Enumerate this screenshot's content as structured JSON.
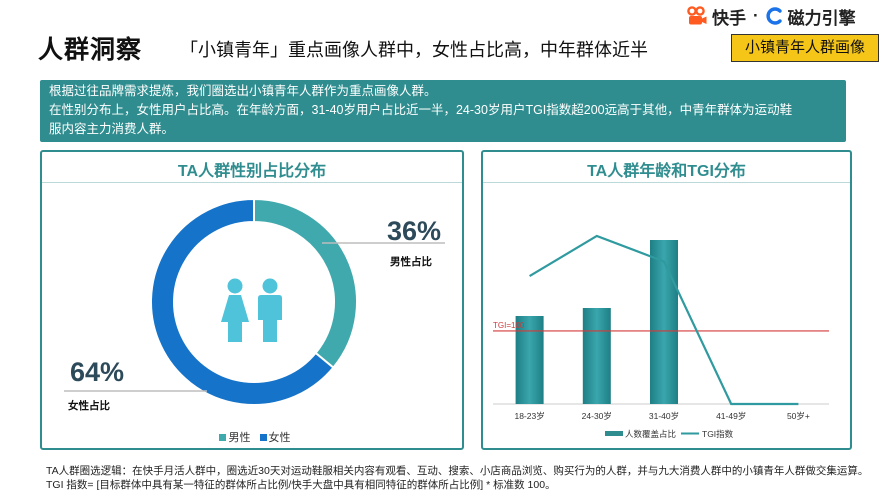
{
  "header": {
    "page_title": "人群洞察",
    "headline": "「小镇青年」重点画像人群中，女性占比高，中年群体近半",
    "tag": "小镇青年人群画像",
    "logo_kuaishou": "快手",
    "logo_separator": "·",
    "logo_cili": "磁力引擎"
  },
  "summary": [
    "根据过往品牌需求提炼，我们圈选出小镇青年人群作为重点画像人群。",
    "在性别分布上，女性用户占比高。在年龄方面，31-40岁用户占比近一半，24-30岁用户TGI指数超200远高于其他，中青年群体为运动鞋",
    "服内容主力消费人群。"
  ],
  "colors": {
    "teal": "#2f8d8f",
    "male": "#40a9ad",
    "female": "#1573c9",
    "badge": "#f5c518",
    "tgi_line": "#d33a3a"
  },
  "chart_data": [
    {
      "type": "pie",
      "title": "TA人群性别占比分布",
      "donut": true,
      "slices": [
        {
          "name": "男性",
          "value": 36,
          "label": "36%",
          "caption": "男性占比"
        },
        {
          "name": "女性",
          "value": 64,
          "label": "64%",
          "caption": "女性占比"
        }
      ],
      "legend": [
        "男性",
        "女性"
      ],
      "legend_position": "bottom"
    },
    {
      "type": "bar",
      "title": "TA人群年龄和TGI分布",
      "categories": [
        "18-23岁",
        "24-30岁",
        "31-40岁",
        "41-49岁",
        "50岁+"
      ],
      "series": [
        {
          "name": "人数覆盖占比",
          "type": "bar",
          "values": [
            22,
            24,
            41,
            0,
            0
          ]
        },
        {
          "name": "TGI指数",
          "type": "line",
          "values": [
            175,
            230,
            195,
            0,
            0
          ]
        }
      ],
      "bar_ylim": [
        0,
        50
      ],
      "tgi_ylim": [
        0,
        260
      ],
      "reference_line": {
        "label": "TGI=100",
        "value": 100
      },
      "legend_position": "bottom"
    }
  ],
  "footnote": [
    "TA人群圈选逻辑：在快手月活人群中，圈选近30天对运动鞋服相关内容有观看、互动、搜索、小店商品浏览、购买行为的人群，并与九大消费人群中的小镇青年人群做交集运算。",
    "TGI 指数= [目标群体中具有某一特征的群体所占比例/快手大盘中具有相同特征的群体所占比例] * 标准数 100。"
  ]
}
